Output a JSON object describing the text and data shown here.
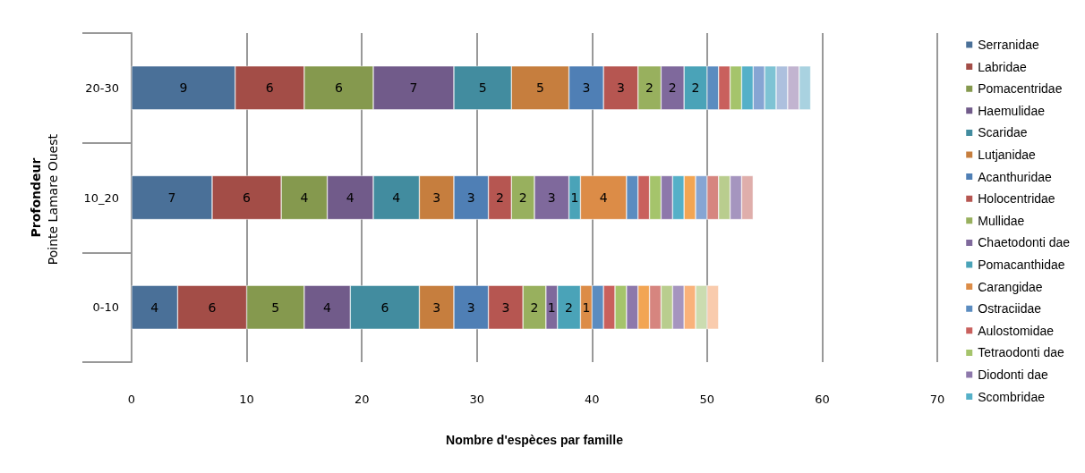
{
  "chart_data": {
    "type": "bar",
    "orientation": "horizontal",
    "stacked": true,
    "xlabel": "Nombre d'espèces par famille",
    "ylabel": "Profondeur",
    "annotations": [
      "Pointe Lamare Ouest"
    ],
    "categories": [
      "20-30",
      "10_20",
      "0-10"
    ],
    "xlim": [
      0,
      70
    ],
    "xticks": [
      0,
      10,
      20,
      30,
      40,
      50,
      60,
      70
    ],
    "grid": "x",
    "legend": "right",
    "series": [
      {
        "name": "Serranidae",
        "color": "#4a7098",
        "values": [
          9,
          7,
          4
        ],
        "value_labels": [
          "9",
          "7",
          "4"
        ]
      },
      {
        "name": "Labridae",
        "color": "#a34d47",
        "values": [
          6,
          6,
          6
        ],
        "value_labels": [
          "6",
          "6",
          "6"
        ]
      },
      {
        "name": "Pomacentridae",
        "color": "#85994e",
        "values": [
          6,
          4,
          5
        ],
        "value_labels": [
          "6",
          "4",
          "5"
        ]
      },
      {
        "name": "Haemulidae",
        "color": "#715b8a",
        "values": [
          7,
          4,
          4
        ],
        "value_labels": [
          "7",
          "4",
          "4"
        ]
      },
      {
        "name": "Scaridae",
        "color": "#428c9f",
        "values": [
          5,
          4,
          6
        ],
        "value_labels": [
          "5",
          "4",
          "6"
        ]
      },
      {
        "name": "Lutjanidae",
        "color": "#c67e3e",
        "values": [
          5,
          3,
          3
        ],
        "value_labels": [
          "5",
          "3",
          "3"
        ]
      },
      {
        "name": "Acanthuridae",
        "color": "#4f7fb5",
        "values": [
          3,
          3,
          3
        ],
        "value_labels": [
          "3",
          "3",
          "3"
        ]
      },
      {
        "name": "Holocentridae",
        "color": "#b65651",
        "values": [
          3,
          2,
          3
        ],
        "value_labels": [
          "3",
          "2",
          "3"
        ]
      },
      {
        "name": "Mullidae",
        "color": "#98b05e",
        "values": [
          2,
          2,
          2
        ],
        "value_labels": [
          "2",
          "2",
          "2"
        ]
      },
      {
        "name": "Chaetodonti dae",
        "color": "#7f699c",
        "values": [
          2,
          3,
          1
        ],
        "value_labels": [
          "2",
          "3",
          "1"
        ]
      },
      {
        "name": "Pomacanthidae",
        "color": "#4aa3b8",
        "values": [
          2,
          1,
          2
        ],
        "value_labels": [
          "2",
          "1",
          "2"
        ]
      },
      {
        "name": "Carangidae",
        "color": "#dc8c47",
        "values": [
          null,
          4,
          1
        ],
        "value_labels": [
          null,
          "4",
          "1"
        ]
      },
      {
        "name": "Ostraciidae",
        "color": "#5b8cc0",
        "values": [
          1,
          1,
          1
        ]
      },
      {
        "name": "Aulostomidae",
        "color": "#c9605d",
        "values": [
          1,
          1,
          1
        ]
      },
      {
        "name": "Tetraodonti dae",
        "color": "#a5c46b",
        "values": [
          1,
          1,
          1
        ]
      },
      {
        "name": "Diodonti dae",
        "color": "#8d78ab",
        "values": [
          null,
          1,
          1
        ]
      },
      {
        "name": "Scombridae",
        "color": "#55b0c8",
        "values": [
          1,
          1,
          null
        ]
      },
      {
        "color": "#f2a553",
        "values": [
          null,
          1,
          1
        ]
      },
      {
        "color": "#86a5d3",
        "values": [
          1,
          1,
          null
        ]
      },
      {
        "color": "#d6857f",
        "values": [
          null,
          1,
          1
        ]
      },
      {
        "color": "#b9cd8e",
        "values": [
          null,
          1,
          1
        ]
      },
      {
        "color": "#a595bf",
        "values": [
          null,
          1,
          1
        ]
      },
      {
        "color": "#7ec3d4",
        "values": [
          1,
          null,
          null
        ]
      },
      {
        "color": "#f9b27b",
        "values": [
          null,
          null,
          1
        ]
      },
      {
        "color": "#adc0de",
        "values": [
          1,
          null,
          null
        ]
      },
      {
        "color": "#dfaeab",
        "values": [
          null,
          1,
          null
        ]
      },
      {
        "color": "#cbdcb0",
        "values": [
          null,
          null,
          1
        ]
      },
      {
        "color": "#c2b4d0",
        "values": [
          1,
          null,
          null
        ]
      },
      {
        "color": "#a9d2e0",
        "values": [
          1,
          null,
          null
        ]
      },
      {
        "color": "#f9cbad",
        "values": [
          null,
          null,
          1
        ]
      }
    ]
  }
}
